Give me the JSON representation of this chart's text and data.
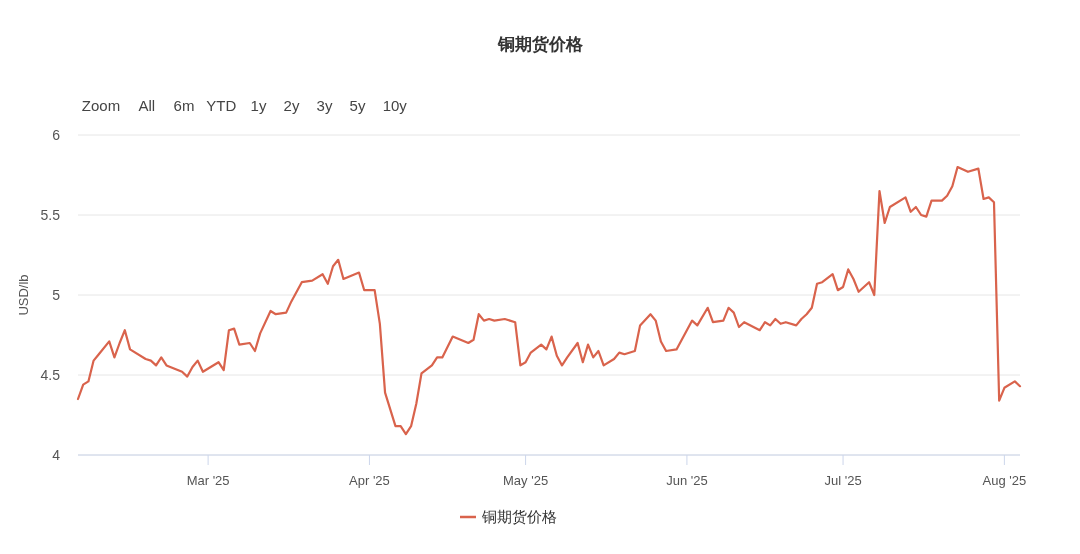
{
  "chart_data": {
    "type": "line",
    "title": "铜期货价格",
    "ylabel": "USD/lb",
    "annotations": [
      "Zoom",
      "All",
      "6m",
      "YTD",
      "1y",
      "2y",
      "3y",
      "5y",
      "10y"
    ],
    "x": [
      "2025-02-04",
      "2025-02-05",
      "2025-02-06",
      "2025-02-07",
      "2025-02-08",
      "2025-02-10",
      "2025-02-11",
      "2025-02-12",
      "2025-02-13",
      "2025-02-14",
      "2025-02-17",
      "2025-02-18",
      "2025-02-19",
      "2025-02-20",
      "2025-02-21",
      "2025-02-24",
      "2025-02-25",
      "2025-02-26",
      "2025-02-27",
      "2025-02-28",
      "2025-03-03",
      "2025-03-04",
      "2025-03-05",
      "2025-03-06",
      "2025-03-07",
      "2025-03-09",
      "2025-03-10",
      "2025-03-11",
      "2025-03-13",
      "2025-03-14",
      "2025-03-16",
      "2025-03-17",
      "2025-03-19",
      "2025-03-21",
      "2025-03-23",
      "2025-03-24",
      "2025-03-25",
      "2025-03-26",
      "2025-03-27",
      "2025-03-30",
      "2025-03-31",
      "2025-04-02",
      "2025-04-03",
      "2025-04-04",
      "2025-04-06",
      "2025-04-07",
      "2025-04-08",
      "2025-04-09",
      "2025-04-10",
      "2025-04-11",
      "2025-04-13",
      "2025-04-14",
      "2025-04-15",
      "2025-04-17",
      "2025-04-20",
      "2025-04-21",
      "2025-04-22",
      "2025-04-23",
      "2025-04-24",
      "2025-04-25",
      "2025-04-27",
      "2025-04-29",
      "2025-04-30",
      "2025-05-01",
      "2025-05-02",
      "2025-05-04",
      "2025-05-05",
      "2025-05-06",
      "2025-05-07",
      "2025-05-08",
      "2025-05-09",
      "2025-05-11",
      "2025-05-12",
      "2025-05-13",
      "2025-05-14",
      "2025-05-15",
      "2025-05-16",
      "2025-05-18",
      "2025-05-19",
      "2025-05-20",
      "2025-05-22",
      "2025-05-23",
      "2025-05-25",
      "2025-05-26",
      "2025-05-27",
      "2025-05-28",
      "2025-05-30",
      "2025-06-02",
      "2025-06-03",
      "2025-06-05",
      "2025-06-06",
      "2025-06-08",
      "2025-06-09",
      "2025-06-10",
      "2025-06-11",
      "2025-06-12",
      "2025-06-15",
      "2025-06-16",
      "2025-06-17",
      "2025-06-18",
      "2025-06-19",
      "2025-06-20",
      "2025-06-22",
      "2025-06-23",
      "2025-06-24",
      "2025-06-25",
      "2025-06-26",
      "2025-06-27",
      "2025-06-29",
      "2025-06-30",
      "2025-07-01",
      "2025-07-02",
      "2025-07-03",
      "2025-07-04",
      "2025-07-06",
      "2025-07-07",
      "2025-07-08",
      "2025-07-09",
      "2025-07-10",
      "2025-07-13",
      "2025-07-14",
      "2025-07-15",
      "2025-07-16",
      "2025-07-17",
      "2025-07-18",
      "2025-07-20",
      "2025-07-21",
      "2025-07-22",
      "2025-07-23",
      "2025-07-25",
      "2025-07-27",
      "2025-07-28",
      "2025-07-29",
      "2025-07-30",
      "2025-07-31",
      "2025-08-01",
      "2025-08-03",
      "2025-08-04"
    ],
    "series": [
      {
        "name": "铜期货价格",
        "color": "#d9634c",
        "values": [
          4.35,
          4.44,
          4.46,
          4.59,
          4.63,
          4.71,
          4.61,
          4.7,
          4.78,
          4.66,
          4.6,
          4.59,
          4.56,
          4.61,
          4.56,
          4.52,
          4.49,
          4.55,
          4.59,
          4.52,
          4.58,
          4.53,
          4.78,
          4.79,
          4.69,
          4.7,
          4.65,
          4.76,
          4.9,
          4.88,
          4.89,
          4.96,
          5.08,
          5.09,
          5.13,
          5.07,
          5.18,
          5.22,
          5.1,
          5.14,
          5.03,
          5.03,
          4.82,
          4.39,
          4.18,
          4.18,
          4.13,
          4.18,
          4.32,
          4.51,
          4.56,
          4.61,
          4.61,
          4.74,
          4.7,
          4.72,
          4.88,
          4.84,
          4.85,
          4.84,
          4.85,
          4.83,
          4.56,
          4.58,
          4.64,
          4.69,
          4.66,
          4.74,
          4.62,
          4.56,
          4.61,
          4.7,
          4.58,
          4.69,
          4.61,
          4.65,
          4.56,
          4.6,
          4.64,
          4.63,
          4.65,
          4.81,
          4.88,
          4.84,
          4.71,
          4.65,
          4.66,
          4.84,
          4.81,
          4.92,
          4.83,
          4.84,
          4.92,
          4.89,
          4.8,
          4.83,
          4.78,
          4.83,
          4.81,
          4.85,
          4.82,
          4.83,
          4.81,
          4.85,
          4.88,
          4.92,
          5.07,
          5.08,
          5.13,
          5.03,
          5.05,
          5.16,
          5.1,
          5.02,
          5.08,
          5.0,
          5.65,
          5.45,
          5.55,
          5.61,
          5.52,
          5.55,
          5.5,
          5.49,
          5.59,
          5.59,
          5.62,
          5.68,
          5.8,
          5.77,
          5.79,
          5.6,
          5.61,
          5.58,
          4.34,
          4.42,
          4.46,
          4.43
        ]
      }
    ],
    "xlim": [
      "2025-02-04",
      "2025-08-04"
    ],
    "xticks": [
      {
        "value": "2025-03-01",
        "label": "Mar '25"
      },
      {
        "value": "2025-04-01",
        "label": "Apr '25"
      },
      {
        "value": "2025-05-01",
        "label": "May '25"
      },
      {
        "value": "2025-06-01",
        "label": "Jun '25"
      },
      {
        "value": "2025-07-01",
        "label": "Jul '25"
      },
      {
        "value": "2025-08-01",
        "label": "Aug '25"
      }
    ],
    "ylim": [
      4,
      6
    ],
    "yticks": [
      4,
      4.5,
      5,
      5.5,
      6
    ],
    "grid": "y",
    "legend": "bottom"
  }
}
